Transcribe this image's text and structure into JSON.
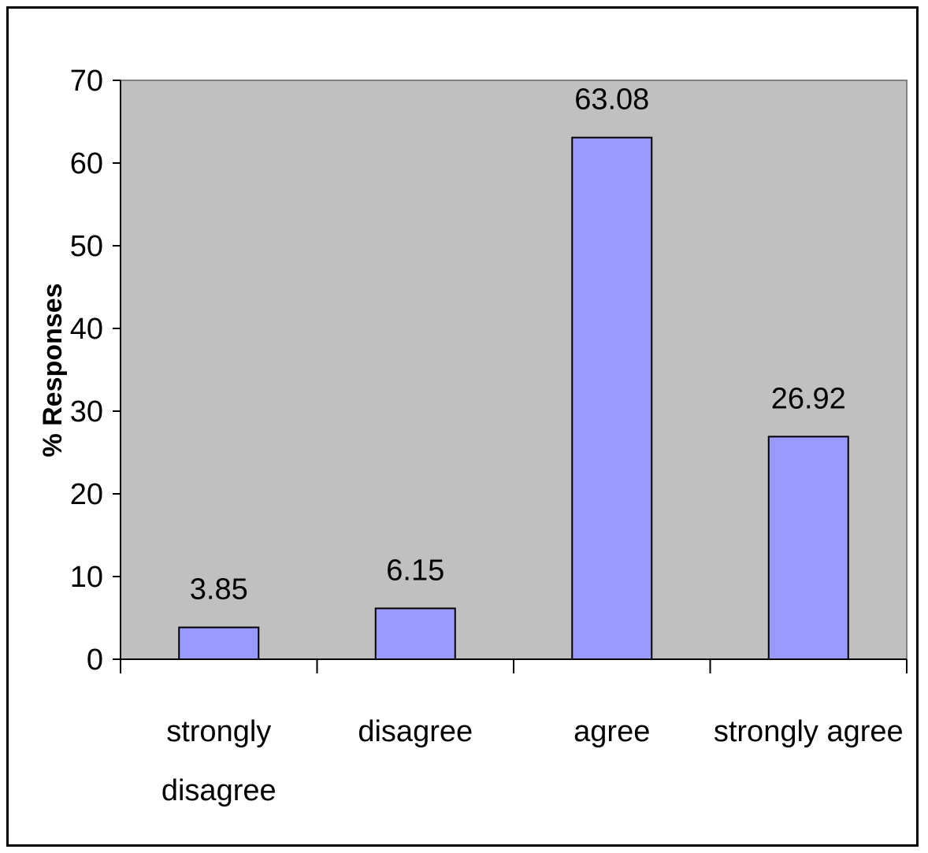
{
  "chart_data": {
    "type": "bar",
    "title": "",
    "xlabel": "",
    "ylabel": "% Responses",
    "ylim": [
      0,
      70
    ],
    "yticks": [
      0,
      10,
      20,
      30,
      40,
      50,
      60,
      70
    ],
    "categories": [
      "strongly disagree",
      "disagree",
      "agree",
      "strongly agree"
    ],
    "category_label_lines": [
      [
        "strongly",
        "disagree"
      ],
      [
        "disagree"
      ],
      [
        "agree"
      ],
      [
        "strongly agree"
      ]
    ],
    "values": [
      3.85,
      6.15,
      63.08,
      26.92
    ],
    "data_labels": [
      "3.85",
      "6.15",
      "63.08",
      "26.92"
    ],
    "grid": false,
    "legend": "none",
    "colors": {
      "plot_background": "#c0c0c0",
      "bar_fill": "#9999ff",
      "bar_stroke": "#000000"
    }
  }
}
